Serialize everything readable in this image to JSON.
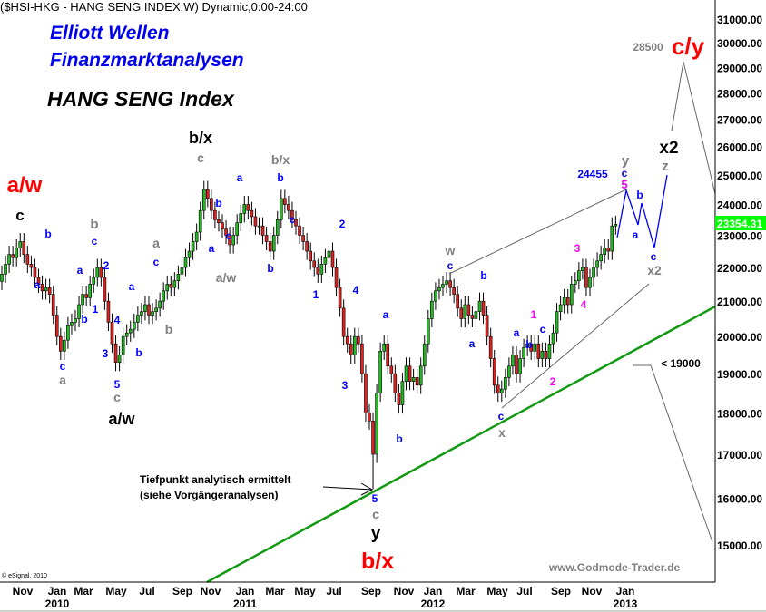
{
  "header": "($HSI-HKG - HANG SENG INDEX,W) Dynamic,0:00-24:00",
  "brand_line1": "Elliott Wellen",
  "brand_line2": "Finanzmarktanalysen",
  "index_title": "HANG SENG Index",
  "footer_site": "www.Godmode-Trader.de",
  "copyright": "© eSignal, 2010",
  "last_price_label": "23354.31",
  "colors": {
    "up": "#22bb22",
    "down": "#dd2222",
    "trendline": "#119911",
    "wave_blue": "#0000ff",
    "red": "#ff0000",
    "gray": "#808080",
    "magenta": "#ff00ff",
    "last_price_bg": "#00ff00"
  },
  "chart_data": {
    "type": "candlestick",
    "period": "weekly",
    "y_scale": "log",
    "ylim": [
      14500,
      31500
    ],
    "y_ticks": [
      "31000.00",
      "30000.00",
      "29000.00",
      "28000.00",
      "27000.00",
      "26000.00",
      "25000.00",
      "24000.00",
      "23000.00",
      "22000.00",
      "21000.00",
      "20000.00",
      "19000.00",
      "18000.00",
      "17000.00",
      "16000.00",
      "15000.00"
    ],
    "x_ticks": [
      "Nov",
      "Jan",
      "Mar",
      "May",
      "Jul",
      "Sep",
      "Nov",
      "Jan",
      "Mar",
      "May",
      "Jul",
      "Sep",
      "Nov",
      "Jan",
      "Mar",
      "May",
      "Jul",
      "Sep",
      "Nov",
      "Jan"
    ],
    "x_years": [
      "2010",
      "2011",
      "2012",
      "2013"
    ],
    "closes": [
      21800,
      22100,
      22400,
      22300,
      22600,
      22800,
      22400,
      22100,
      22000,
      21700,
      21500,
      21300,
      21400,
      21200,
      20600,
      20000,
      19600,
      19900,
      20300,
      20400,
      20500,
      20900,
      21200,
      21100,
      21500,
      21700,
      22000,
      21700,
      21000,
      20400,
      19800,
      19300,
      19500,
      20000,
      20100,
      20200,
      20400,
      20600,
      20700,
      20900,
      20600,
      20700,
      20800,
      21000,
      21300,
      21500,
      21400,
      21600,
      21800,
      22000,
      22300,
      22500,
      22800,
      23100,
      23800,
      24500,
      24200,
      23800,
      23500,
      23400,
      23200,
      23000,
      22700,
      23000,
      23400,
      23700,
      24000,
      23800,
      23600,
      23300,
      23300,
      23000,
      22800,
      22500,
      23000,
      23500,
      24200,
      24000,
      23800,
      23500,
      23300,
      23000,
      22800,
      22500,
      22200,
      22000,
      21800,
      22100,
      22300,
      22500,
      22000,
      21400,
      20800,
      20000,
      19800,
      19500,
      20000,
      19800,
      19000,
      18000,
      17800,
      17000,
      18500,
      19600,
      19800,
      19200,
      19000,
      18500,
      18200,
      18800,
      19200,
      18800,
      18900,
      18700,
      19200,
      19800,
      20500,
      21000,
      21300,
      21400,
      21500,
      21600,
      21400,
      21200,
      20800,
      20500,
      20900,
      20600,
      20500,
      20700,
      21000,
      20600,
      20000,
      19400,
      18700,
      18500,
      18600,
      18900,
      19200,
      19500,
      19000,
      19400,
      19700,
      19800,
      19600,
      19800,
      19400,
      19600,
      19400,
      19800,
      20100,
      20700,
      20900,
      21100,
      20900,
      21500,
      21600,
      21900,
      22000,
      21400,
      21700,
      22000,
      22200,
      22400,
      22600,
      22500,
      23300,
      23354
    ],
    "last_price": 23354.31,
    "annotations": [
      {
        "text": "a/w",
        "color": "#ff0000"
      },
      {
        "text": "c",
        "color": "#000000"
      },
      {
        "text": "b",
        "color": "#0000ff"
      },
      {
        "text": "a",
        "color": "#0000ff"
      },
      {
        "text": "c",
        "color": "#0000ff"
      },
      {
        "text": "a",
        "color": "#808080"
      },
      {
        "text": "a",
        "color": "#0000ff"
      },
      {
        "text": "b",
        "color": "#0000ff"
      },
      {
        "text": "c",
        "color": "#0000ff"
      },
      {
        "text": "b",
        "color": "#808080"
      },
      {
        "text": "1",
        "color": "#0000ff"
      },
      {
        "text": "2",
        "color": "#0000ff"
      },
      {
        "text": "4",
        "color": "#0000ff"
      },
      {
        "text": "3",
        "color": "#0000ff"
      },
      {
        "text": "5",
        "color": "#0000ff"
      },
      {
        "text": "c",
        "color": "#808080"
      },
      {
        "text": "a/w",
        "color": "#000000"
      },
      {
        "text": "b",
        "color": "#0000ff"
      },
      {
        "text": "a",
        "color": "#0000ff"
      },
      {
        "text": "c",
        "color": "#0000ff"
      },
      {
        "text": "a",
        "color": "#808080"
      },
      {
        "text": "b",
        "color": "#808080"
      },
      {
        "text": "b/x",
        "color": "#000000"
      },
      {
        "text": "c",
        "color": "#808080"
      },
      {
        "text": "a",
        "color": "#0000ff"
      },
      {
        "text": "b",
        "color": "#0000ff"
      },
      {
        "text": "a",
        "color": "#0000ff"
      },
      {
        "text": "c",
        "color": "#0000ff"
      },
      {
        "text": "a/w",
        "color": "#808080"
      },
      {
        "text": "b/x",
        "color": "#808080"
      },
      {
        "text": "b",
        "color": "#0000ff"
      },
      {
        "text": "b",
        "color": "#0000ff"
      },
      {
        "text": "c",
        "color": "#0000ff"
      },
      {
        "text": "1",
        "color": "#0000ff"
      },
      {
        "text": "2",
        "color": "#0000ff"
      },
      {
        "text": "4",
        "color": "#0000ff"
      },
      {
        "text": "3",
        "color": "#0000ff"
      },
      {
        "text": "a",
        "color": "#0000ff"
      },
      {
        "text": "b",
        "color": "#0000ff"
      },
      {
        "text": "5",
        "color": "#0000ff"
      },
      {
        "text": "c",
        "color": "#808080"
      },
      {
        "text": "y",
        "color": "#000000"
      },
      {
        "text": "b/x",
        "color": "#ff0000"
      },
      {
        "text": "w",
        "color": "#808080"
      },
      {
        "text": "c",
        "color": "#0000ff"
      },
      {
        "text": "b",
        "color": "#0000ff"
      },
      {
        "text": "a",
        "color": "#0000ff"
      },
      {
        "text": "c",
        "color": "#0000ff"
      },
      {
        "text": "x",
        "color": "#808080"
      },
      {
        "text": "a",
        "color": "#0000ff"
      },
      {
        "text": "b",
        "color": "#0000ff"
      },
      {
        "text": "1",
        "color": "#ff00ff"
      },
      {
        "text": "c",
        "color": "#0000ff"
      },
      {
        "text": "2",
        "color": "#ff00ff"
      },
      {
        "text": "3",
        "color": "#ff00ff"
      },
      {
        "text": "4",
        "color": "#ff00ff"
      },
      {
        "text": "24455",
        "color": "#0000ff"
      },
      {
        "text": "y",
        "color": "#808080"
      },
      {
        "text": "c",
        "color": "#0000ff"
      },
      {
        "text": "5",
        "color": "#ff00ff"
      },
      {
        "text": "b",
        "color": "#0000ff"
      },
      {
        "text": "a",
        "color": "#0000ff"
      },
      {
        "text": "c",
        "color": "#0000ff"
      },
      {
        "text": "x2",
        "color": "#808080"
      },
      {
        "text": "x2",
        "color": "#000000"
      },
      {
        "text": "z",
        "color": "#808080"
      },
      {
        "text": "28500",
        "color": "#808080"
      },
      {
        "text": "c/y",
        "color": "#ff0000"
      },
      {
        "text": "< 19000",
        "color": "#000000"
      },
      {
        "text": "Tiefpunkt analytisch ermittelt",
        "color": "#000000"
      },
      {
        "text": "(siehe Vorgängeranalysen)",
        "color": "#000000"
      }
    ]
  }
}
